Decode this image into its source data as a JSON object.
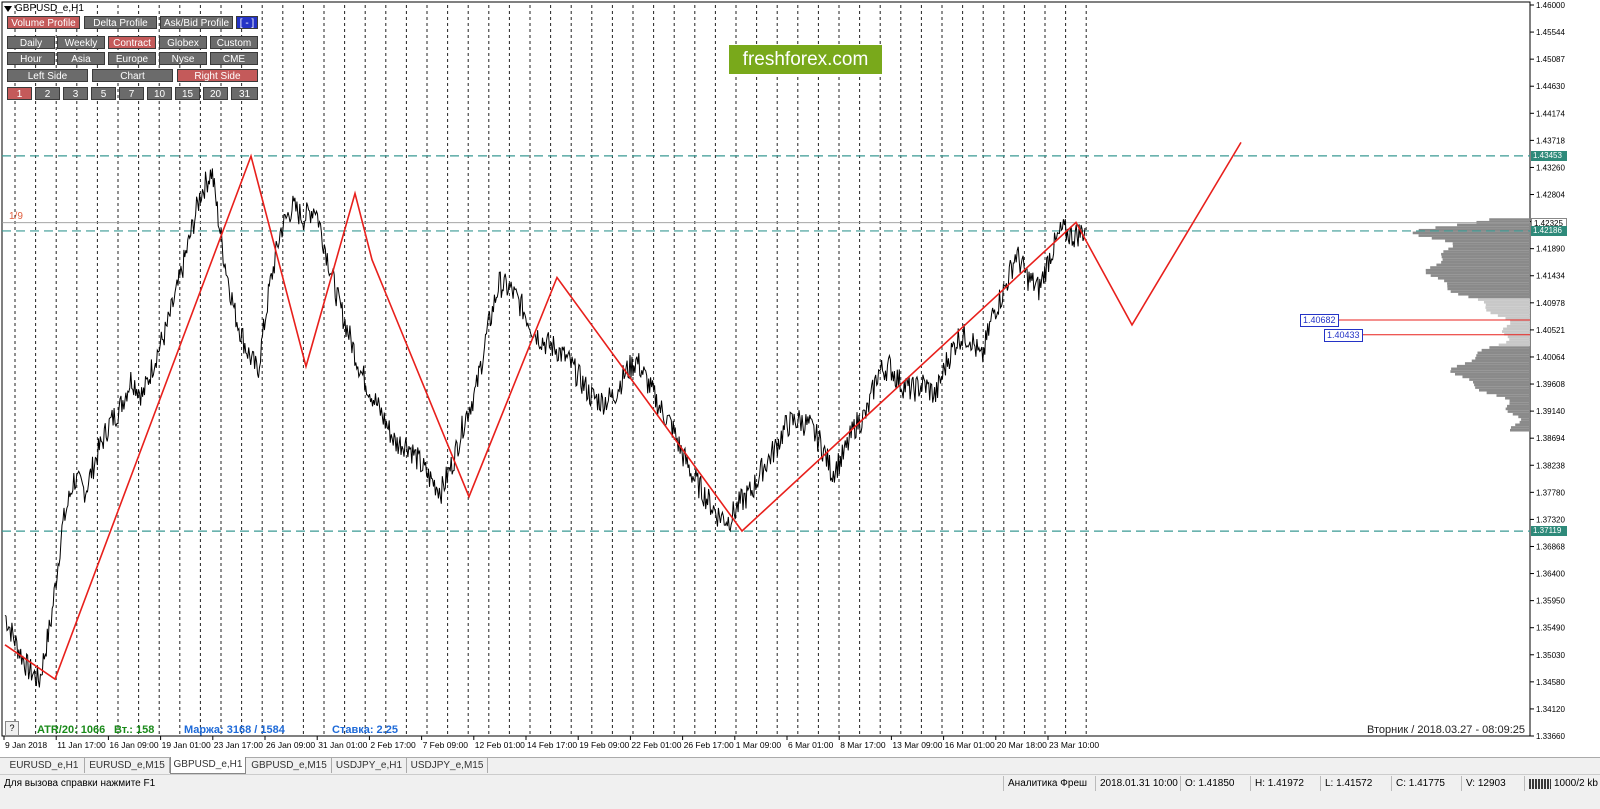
{
  "window": {
    "symbol_title": "GBPUSD_e,H1"
  },
  "toolbar": {
    "row1": [
      {
        "label": "Volume Profile",
        "active": true
      },
      {
        "label": "Delta Profile",
        "active": false
      },
      {
        "label": "Ask/Bid Profile",
        "active": false
      },
      {
        "label": "[ - ]",
        "active": false,
        "blue": true
      }
    ],
    "row2": [
      {
        "label": "Daily",
        "active": false
      },
      {
        "label": "Weekly",
        "active": false
      },
      {
        "label": "Contract",
        "active": true
      },
      {
        "label": "Globex",
        "active": false
      },
      {
        "label": "Custom",
        "active": false
      }
    ],
    "row3": [
      {
        "label": "Hour",
        "active": false
      },
      {
        "label": "Asia",
        "active": false
      },
      {
        "label": "Europe",
        "active": false
      },
      {
        "label": "Nyse",
        "active": false
      },
      {
        "label": "CME",
        "active": false
      }
    ],
    "row4": [
      {
        "label": "Left Side",
        "active": false
      },
      {
        "label": "Chart",
        "active": false
      },
      {
        "label": "Right Side",
        "active": true
      }
    ],
    "row5": [
      {
        "label": "1",
        "active": true
      },
      {
        "label": "2",
        "active": false
      },
      {
        "label": "3",
        "active": false
      },
      {
        "label": "5",
        "active": false
      },
      {
        "label": "7",
        "active": false
      },
      {
        "label": "10",
        "active": false
      },
      {
        "label": "15",
        "active": false
      },
      {
        "label": "20",
        "active": false
      },
      {
        "label": "31",
        "active": false
      }
    ]
  },
  "logo": {
    "text": "freshforex.com"
  },
  "price_axis": {
    "labels": [
      "1.46000",
      "1.45544",
      "1.45087",
      "1.44630",
      "1.44174",
      "1.43718",
      "1.43260",
      "1.42804",
      "1.42350",
      "1.41890",
      "1.41434",
      "1.40978",
      "1.40521",
      "1.40064",
      "1.39608",
      "1.39140",
      "1.38694",
      "1.38238",
      "1.37780",
      "1.37320",
      "1.36868",
      "1.36400",
      "1.35950",
      "1.35490",
      "1.35030",
      "1.34580",
      "1.34120",
      "1.33660"
    ],
    "tags": [
      {
        "text": "1.43453",
        "price": 1.43453,
        "style": "teal"
      },
      {
        "text": "1.42325",
        "price": 1.42325,
        "style": "grey"
      },
      {
        "text": "1.42186",
        "price": 1.42186,
        "style": "teal"
      },
      {
        "text": "1.37119",
        "price": 1.37119,
        "style": "teal"
      }
    ]
  },
  "levels": [
    {
      "text": "1.40682",
      "price": 1.40682
    },
    {
      "text": "1.40433",
      "price": 1.40433
    }
  ],
  "fib_label": "1/9",
  "time_axis": {
    "labels": [
      "9 Jan 2018",
      "11 Jan 17:00",
      "16 Jan 09:00",
      "19 Jan 01:00",
      "23 Jan 17:00",
      "26 Jan 09:00",
      "31 Jan 01:00",
      "2 Feb 17:00",
      "7 Feb 09:00",
      "12 Feb 01:00",
      "14 Feb 17:00",
      "19 Feb 09:00",
      "22 Feb 01:00",
      "26 Feb 17:00",
      "1 Mar 09:00",
      "6 Mar 01:00",
      "8 Mar 17:00",
      "13 Mar 09:00",
      "16 Mar 01:00",
      "20 Mar 18:00",
      "23 Mar 10:00"
    ]
  },
  "stats": {
    "atr": "ATR/20: 1066",
    "vt": "Вт.: 158",
    "margin": "Маржа: 3168 / 1584",
    "rate": "Ставка: 2.25"
  },
  "datetime": "Вторник  /  2018.03.27  -  08:09:25",
  "help_icon": "?",
  "tabs": [
    {
      "label": "EURUSD_e,H1",
      "active": false
    },
    {
      "label": "EURUSD_e,M15",
      "active": false
    },
    {
      "label": "GBPUSD_e,H1",
      "active": true
    },
    {
      "label": "GBPUSD_e,M15",
      "active": false
    },
    {
      "label": "USDJPY_e,H1",
      "active": false
    },
    {
      "label": "USDJPY_e,M15",
      "active": false
    }
  ],
  "status": {
    "help": "Для вызова справки нажмите F1",
    "profile": "Аналитика Фреш",
    "time": "2018.01.31 10:00",
    "open": "O: 1.41850",
    "high": "H: 1.41972",
    "low": "L: 1.41572",
    "close": "C: 1.41775",
    "volume": "V: 12903",
    "traffic": "1000/2 kb"
  },
  "colors": {
    "zigzag": "#e8201c",
    "level_line": "#3a9a94",
    "logo_bg": "#79a91b",
    "tag_teal": "#2e8a7a"
  },
  "chart_data": {
    "type": "line",
    "symbol": "GBPUSD_e",
    "timeframe": "H1",
    "ylim": [
      1.3366,
      1.46
    ],
    "zigzag": [
      {
        "x": "9 Jan 2018",
        "y": 1.352
      },
      {
        "x": "10 Jan",
        "y": 1.3462
      },
      {
        "x": "23 Jan 17:00",
        "y": 1.4345
      },
      {
        "x": "26 Jan 09:00",
        "y": 1.399
      },
      {
        "x": "31 Jan 01:00",
        "y": 1.4282
      },
      {
        "x": "2 Feb 17:00",
        "y": 1.417
      },
      {
        "x": "9 Feb",
        "y": 1.377
      },
      {
        "x": "14 Feb 17:00",
        "y": 1.414
      },
      {
        "x": "1 Mar 09:00",
        "y": 1.3712
      },
      {
        "x": "23 Mar 10:00",
        "y": 1.4233
      },
      {
        "x": "forecast-1",
        "y": 1.406
      },
      {
        "x": "forecast-2",
        "y": 1.4368
      }
    ],
    "horizontal_levels": [
      1.43453,
      1.42186,
      1.37119
    ],
    "close_series": [
      1.357,
      1.352,
      1.348,
      1.346,
      1.356,
      1.372,
      1.38,
      1.378,
      1.384,
      1.389,
      1.392,
      1.397,
      1.394,
      1.4,
      1.405,
      1.412,
      1.42,
      1.428,
      1.432,
      1.418,
      1.408,
      1.402,
      1.398,
      1.412,
      1.422,
      1.426,
      1.424,
      1.426,
      1.418,
      1.41,
      1.404,
      1.398,
      1.394,
      1.39,
      1.386,
      1.386,
      1.383,
      1.38,
      1.378,
      1.383,
      1.39,
      1.395,
      1.405,
      1.413,
      1.412,
      1.409,
      1.405,
      1.403,
      1.402,
      1.4,
      1.397,
      1.394,
      1.393,
      1.394,
      1.398,
      1.4,
      1.396,
      1.392,
      1.389,
      1.384,
      1.38,
      1.377,
      1.374,
      1.373,
      1.376,
      1.378,
      1.382,
      1.385,
      1.389,
      1.39,
      1.389,
      1.386,
      1.381,
      1.384,
      1.389,
      1.391,
      1.398,
      1.399,
      1.396,
      1.395,
      1.396,
      1.394,
      1.4,
      1.404,
      1.404,
      1.4,
      1.408,
      1.412,
      1.418,
      1.414,
      1.412,
      1.418,
      1.422,
      1.421,
      1.422
    ]
  }
}
